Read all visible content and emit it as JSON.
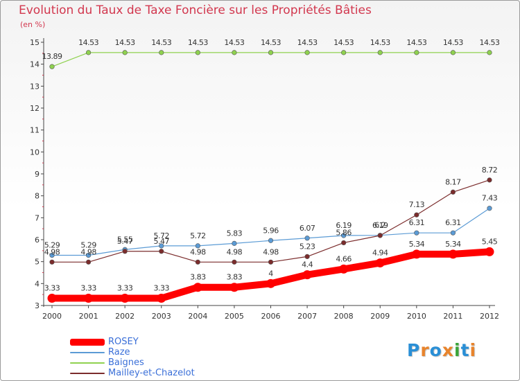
{
  "header": {
    "title": "Evolution du Taux de Taxe Foncière sur les Propriétés Bâties",
    "unit": "(en %)"
  },
  "logo": {
    "text": "Proxiti",
    "colors": [
      "#2a8fd6",
      "#e8842c",
      "#2a8fd6",
      "#e8842c",
      "#3aa53a",
      "#2a8fd6",
      "#e8842c"
    ]
  },
  "chart_data": {
    "type": "line",
    "x": [
      "2000",
      "2001",
      "2002",
      "2003",
      "2004",
      "2005",
      "2006",
      "2007",
      "2008",
      "2009",
      "2010",
      "2011",
      "2012"
    ],
    "ylim": [
      3,
      15
    ],
    "yticks": [
      "3",
      "4",
      "5",
      "6",
      "7",
      "8",
      "9",
      "10",
      "11",
      "12",
      "13",
      "14",
      "15"
    ],
    "grid": false,
    "legend_position": "bottom-left",
    "series": [
      {
        "name": "ROSEY",
        "color": "#ff0000",
        "values": [
          3.33,
          3.33,
          3.33,
          3.33,
          3.83,
          3.83,
          4,
          4.4,
          4.66,
          4.94,
          5.34,
          5.34,
          5.45
        ],
        "labels": [
          "3.33",
          "3.33",
          "3.33",
          "3.33",
          "3.83",
          "3.83",
          "4",
          "4.4",
          "4.66",
          "4.94",
          "5.34",
          "5.34",
          "5.45"
        ]
      },
      {
        "name": "Raze",
        "color": "#5b9bd5",
        "values": [
          5.29,
          5.29,
          5.55,
          5.72,
          5.72,
          5.83,
          5.96,
          6.07,
          6.19,
          6.2,
          6.31,
          6.31,
          7.43
        ],
        "labels": [
          "5.29",
          "5.29",
          "5.55",
          "5.72",
          "5.72",
          "5.83",
          "5.96",
          "6.07",
          "6.19",
          "6.2",
          "6.31",
          "6.31",
          "7.43"
        ]
      },
      {
        "name": "Baignes",
        "color": "#8fd14f",
        "values": [
          13.89,
          14.53,
          14.53,
          14.53,
          14.53,
          14.53,
          14.53,
          14.53,
          14.53,
          14.53,
          14.53,
          14.53,
          14.53
        ],
        "labels": [
          "13.89",
          "14.53",
          "14.53",
          "14.53",
          "14.53",
          "14.53",
          "14.53",
          "14.53",
          "14.53",
          "14.53",
          "14.53",
          "14.53",
          "14.53"
        ]
      },
      {
        "name": "Mailley-et-Chazelot",
        "color": "#7b2c2c",
        "values": [
          4.98,
          4.98,
          5.47,
          5.47,
          4.98,
          4.98,
          4.98,
          5.23,
          5.86,
          6.19,
          7.13,
          8.17,
          8.72
        ],
        "labels": [
          "4.98",
          "4.98",
          "5.47",
          "5.47",
          "4.98",
          "4.98",
          "4.98",
          "5.23",
          "5.86",
          "6.19",
          "7.13",
          "8.17",
          "8.72"
        ]
      }
    ]
  }
}
